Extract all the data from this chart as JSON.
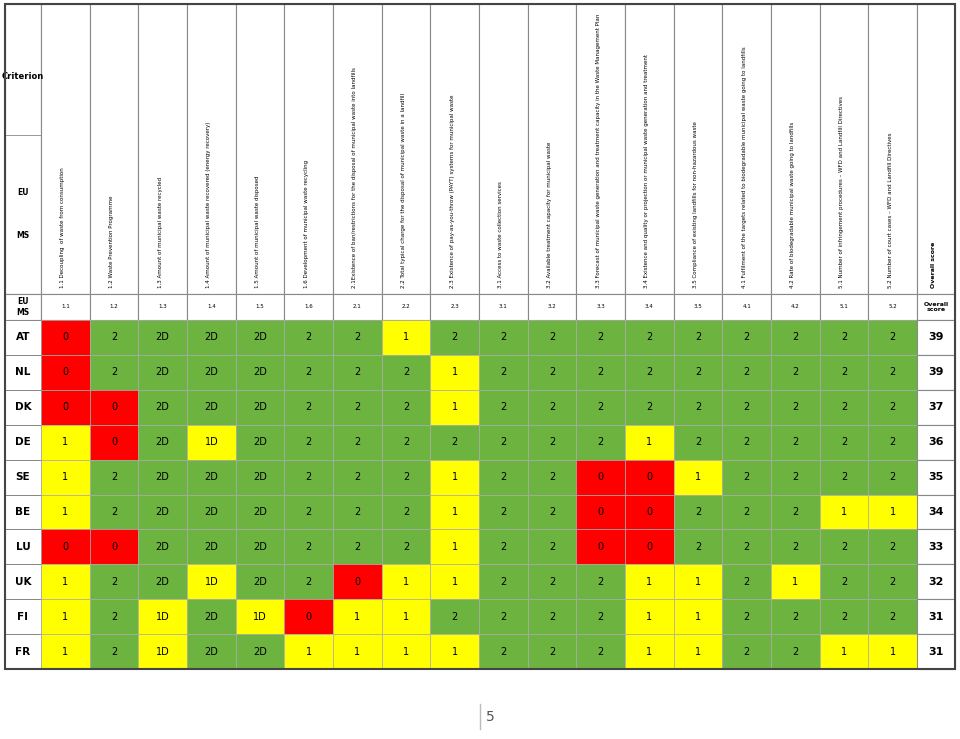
{
  "col_headers": [
    "1.1 Decoupling  of waste from consumption",
    "1.2 Waste Prevention Programme",
    "1.3 Amount of municipal waste recycled",
    "1.4 Amount of municipal waste recovered (energy recovery)",
    "1.5 Amount of municipal waste disposed",
    "1.6 Development of municipal waste recycling",
    "2.1Existence of ban/restrictions for the disposal of municipal waste into landfills",
    "2.2 Total typical charge for the disposal of municipal waste in a landfill",
    "2.3 Existence of pay-as-you-throw (PAYT) systems for municipal waste",
    "3.1 Access to waste collection services",
    "3.2 Available treatment capacity for municipal waste",
    "3.3 Forecast of municipal waste generation and treatment capacity in the Waste Management Plan",
    "3.4 Existence and quality or projection or municipal waste generation and treatment",
    "3.5 Compliance of existing landfills for non-hazardous waste",
    "4.1 Fulfilment of the targets related to biodegradable municipal waste going to landfills",
    "4.2 Rate of biodegradable municipal waste going to landfills",
    "5.1 Number of infringement procedures – WFD and Landfill Directives",
    "5.2 Number of court cases – WFD and Landfill Directives"
  ],
  "score_header": "Overall\nscore",
  "row_headers": [
    "AT",
    "NL",
    "DK",
    "DE",
    "SE",
    "BE",
    "LU",
    "UK",
    "FI",
    "FR"
  ],
  "cell_labels": [
    [
      "0",
      "2",
      "2D",
      "2D",
      "2D",
      "2",
      "2",
      "1",
      "2",
      "2",
      "2",
      "2",
      "2",
      "2",
      "2",
      "2",
      "2",
      "2",
      "39"
    ],
    [
      "0",
      "2",
      "2D",
      "2D",
      "2D",
      "2",
      "2",
      "2",
      "1",
      "2",
      "2",
      "2",
      "2",
      "2",
      "2",
      "2",
      "2",
      "2",
      "39"
    ],
    [
      "0",
      "0",
      "2D",
      "2D",
      "2D",
      "2",
      "2",
      "2",
      "1",
      "2",
      "2",
      "2",
      "2",
      "2",
      "2",
      "2",
      "2",
      "2",
      "37"
    ],
    [
      "1",
      "0",
      "2D",
      "1D",
      "2D",
      "2",
      "2",
      "2",
      "2",
      "2",
      "2",
      "2",
      "1",
      "2",
      "2",
      "2",
      "2",
      "2",
      "36"
    ],
    [
      "1",
      "2",
      "2D",
      "2D",
      "2D",
      "2",
      "2",
      "2",
      "1",
      "2",
      "2",
      "0",
      "0",
      "1",
      "2",
      "2",
      "2",
      "2",
      "35"
    ],
    [
      "1",
      "2",
      "2D",
      "2D",
      "2D",
      "2",
      "2",
      "2",
      "1",
      "2",
      "2",
      "0",
      "0",
      "2",
      "2",
      "2",
      "1",
      "1",
      "34"
    ],
    [
      "0",
      "0",
      "2D",
      "2D",
      "2D",
      "2",
      "2",
      "2",
      "1",
      "2",
      "2",
      "0",
      "0",
      "2",
      "2",
      "2",
      "2",
      "2",
      "33"
    ],
    [
      "1",
      "2",
      "2D",
      "1D",
      "2D",
      "2",
      "0",
      "1",
      "1",
      "2",
      "2",
      "2",
      "1",
      "1",
      "2",
      "1",
      "2",
      "2",
      "32"
    ],
    [
      "1",
      "2",
      "1D",
      "2D",
      "1D",
      "0",
      "1",
      "1",
      "2",
      "2",
      "2",
      "2",
      "1",
      "1",
      "2",
      "2",
      "2",
      "2",
      "31"
    ],
    [
      "1",
      "2",
      "1D",
      "2D",
      "2D",
      "1",
      "1",
      "1",
      "1",
      "2",
      "2",
      "2",
      "1",
      "1",
      "2",
      "2",
      "1",
      "1",
      "31"
    ]
  ],
  "green": "#6db33f",
  "yellow": "#FFFF00",
  "red": "#FF0000",
  "white": "#FFFFFF",
  "grid_color": "#aaaaaa",
  "dark_grid": "#888888",
  "page_num": "5"
}
